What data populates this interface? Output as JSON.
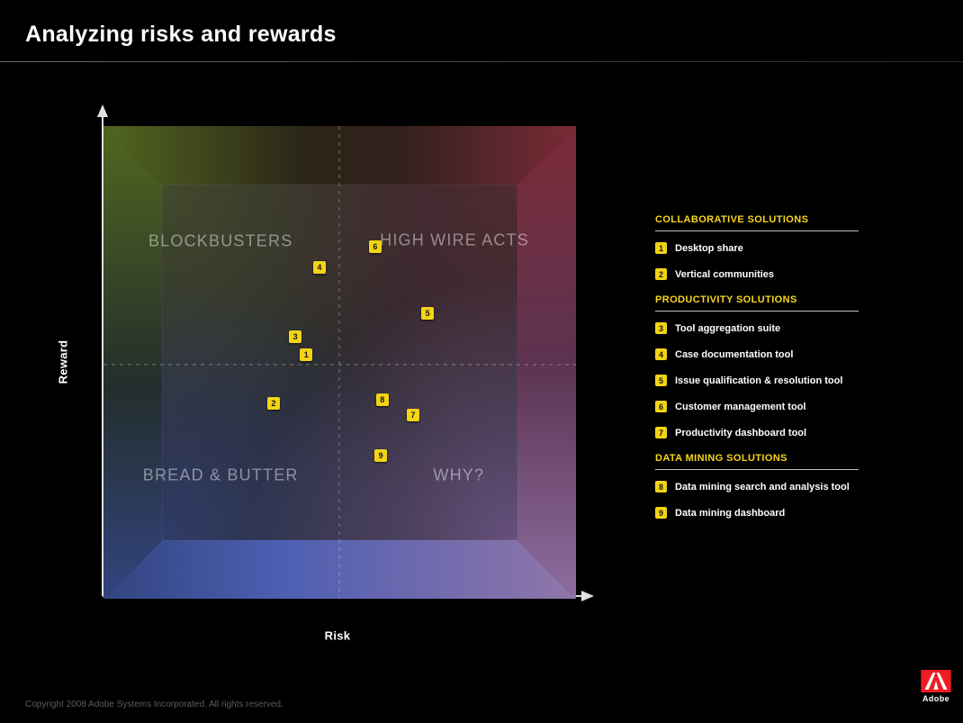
{
  "title": "Analyzing risks and rewards",
  "chart_data": {
    "type": "scatter",
    "title": "Analyzing risks and rewards",
    "xlabel": "Risk",
    "ylabel": "Reward",
    "axes_numeric": false,
    "grid": "dashed center quadrant lines",
    "coords_units": "percent of plot area, origin top-left",
    "quadrant_labels": [
      {
        "label": "BLOCKBUSTERS",
        "x": 24.8,
        "y": 24.4
      },
      {
        "label": "HIGH WIRE ACTS",
        "x": 74.3,
        "y": 24.2
      },
      {
        "label": "BREAD & BUTTER",
        "x": 24.8,
        "y": 73.9
      },
      {
        "label": "WHY?",
        "x": 75.2,
        "y": 73.9
      }
    ],
    "points": [
      {
        "id": "1",
        "label": "Desktop share",
        "x": 42.9,
        "y": 48.4
      },
      {
        "id": "2",
        "label": "Vertical communities",
        "x": 36.0,
        "y": 58.7
      },
      {
        "id": "3",
        "label": "Tool aggregation suite",
        "x": 40.6,
        "y": 44.6
      },
      {
        "id": "4",
        "label": "Case documentation tool",
        "x": 45.7,
        "y": 29.9
      },
      {
        "id": "5",
        "label": "Issue qualification & resolution tool",
        "x": 68.6,
        "y": 39.6
      },
      {
        "id": "6",
        "label": "Customer management tool",
        "x": 57.5,
        "y": 25.5
      },
      {
        "id": "7",
        "label": "Productivity dashboard tool",
        "x": 65.5,
        "y": 61.1
      },
      {
        "id": "8",
        "label": "Data mining search and analysis tool",
        "x": 59.0,
        "y": 57.9
      },
      {
        "id": "9",
        "label": "Data mining dashboard",
        "x": 58.7,
        "y": 69.7
      }
    ]
  },
  "legend": {
    "groups": [
      {
        "header": "COLLABORATIVE SOLUTIONS",
        "items": [
          {
            "num": "1",
            "label": "Desktop share"
          },
          {
            "num": "2",
            "label": "Vertical communities"
          }
        ]
      },
      {
        "header": "PRODUCTIVITY SOLUTIONS",
        "items": [
          {
            "num": "3",
            "label": "Tool aggregation suite"
          },
          {
            "num": "4",
            "label": "Case documentation tool"
          },
          {
            "num": "5",
            "label": "Issue qualification & resolution tool"
          },
          {
            "num": "6",
            "label": "Customer management tool"
          },
          {
            "num": "7",
            "label": "Productivity dashboard tool"
          }
        ]
      },
      {
        "header": "DATA MINING SOLUTIONS",
        "items": [
          {
            "num": "8",
            "label": "Data mining search and analysis tool"
          },
          {
            "num": "9",
            "label": "Data mining dashboard"
          }
        ]
      }
    ]
  },
  "footer": {
    "copyright": "Copyright 2008 Adobe Systems Incorporated. All rights reserved.",
    "brand": "Adobe"
  },
  "colors": {
    "background": "#000000",
    "marker_yellow": "#f2d414",
    "header_yellow": "#f7d51d",
    "quadrant_green": "#51661f",
    "quadrant_red": "#7b2a37",
    "quadrant_blue": "#32447f",
    "quadrant_purple": "#8d6da1",
    "adobe_red": "#ed1c24"
  }
}
